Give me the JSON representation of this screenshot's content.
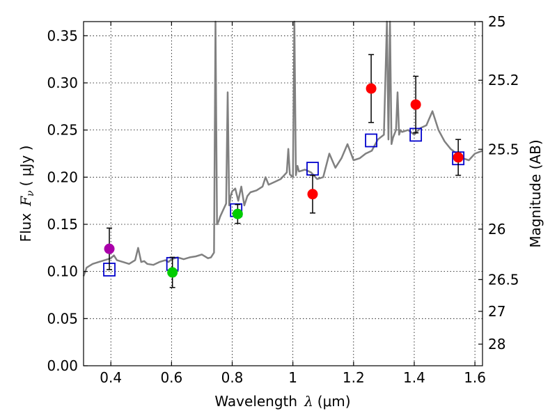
{
  "chart_data": {
    "type": "scatter",
    "title": "",
    "xlabel_text": "Wavelength",
    "xlabel_math": "λ",
    "xlabel_unit": "(μm)",
    "ylabel_text": "Flux",
    "ylabel_math": "F",
    "ylabel_sub": "ν",
    "ylabel_unit": "( μJy )",
    "y2label": "Magnitude (AB)",
    "xlim": [
      0.31,
      1.625
    ],
    "ylim": [
      0.0,
      0.365
    ],
    "grid": true,
    "x_ticks": [
      {
        "value": 0.4,
        "label": "0.4"
      },
      {
        "value": 0.6,
        "label": "0.6"
      },
      {
        "value": 0.8,
        "label": "0.8"
      },
      {
        "value": 1.0,
        "label": "1"
      },
      {
        "value": 1.2,
        "label": "1.2"
      },
      {
        "value": 1.4,
        "label": "1.4"
      },
      {
        "value": 1.6,
        "label": "1.6"
      }
    ],
    "y_ticks": [
      {
        "value": 0.0,
        "label": "0.00"
      },
      {
        "value": 0.05,
        "label": "0.05"
      },
      {
        "value": 0.1,
        "label": "0.10"
      },
      {
        "value": 0.15,
        "label": "0.15"
      },
      {
        "value": 0.2,
        "label": "0.20"
      },
      {
        "value": 0.25,
        "label": "0.25"
      },
      {
        "value": 0.3,
        "label": "0.30"
      },
      {
        "value": 0.35,
        "label": "0.35"
      }
    ],
    "y2_ticks": [
      {
        "label": "25",
        "flux": 0.365
      },
      {
        "label": "25.2",
        "flux": 0.3028
      },
      {
        "label": "25.5",
        "flux": 0.2296
      },
      {
        "label": "26",
        "flux": 0.1449
      },
      {
        "label": "26.5",
        "flux": 0.0914
      },
      {
        "label": "27",
        "flux": 0.0577
      },
      {
        "label": "28",
        "flux": 0.0229
      }
    ],
    "series": [
      {
        "marker": "line",
        "color": "#808080",
        "x": [
          0.31,
          0.32,
          0.33,
          0.34,
          0.36,
          0.38,
          0.4,
          0.41,
          0.42,
          0.44,
          0.46,
          0.48,
          0.49,
          0.5,
          0.51,
          0.52,
          0.54,
          0.56,
          0.58,
          0.59,
          0.6,
          0.62,
          0.64,
          0.66,
          0.68,
          0.7,
          0.72,
          0.73,
          0.74,
          0.745,
          0.75,
          0.755,
          0.76,
          0.77,
          0.78,
          0.785,
          0.79,
          0.795,
          0.8,
          0.81,
          0.82,
          0.83,
          0.84,
          0.85,
          0.86,
          0.88,
          0.9,
          0.91,
          0.92,
          0.94,
          0.96,
          0.98,
          0.985,
          0.99,
          1.0,
          1.005,
          1.01,
          1.015,
          1.02,
          1.04,
          1.06,
          1.08,
          1.1,
          1.12,
          1.14,
          1.16,
          1.18,
          1.2,
          1.22,
          1.24,
          1.26,
          1.28,
          1.3,
          1.31,
          1.315,
          1.32,
          1.325,
          1.33,
          1.34,
          1.345,
          1.35,
          1.355,
          1.36,
          1.38,
          1.4,
          1.42,
          1.44,
          1.46,
          1.48,
          1.5,
          1.52,
          1.54,
          1.56,
          1.58,
          1.6,
          1.625
        ],
        "y": [
          0.095,
          0.104,
          0.106,
          0.108,
          0.11,
          0.112,
          0.114,
          0.117,
          0.112,
          0.11,
          0.108,
          0.112,
          0.125,
          0.11,
          0.111,
          0.108,
          0.107,
          0.11,
          0.112,
          0.11,
          0.113,
          0.115,
          0.113,
          0.115,
          0.116,
          0.118,
          0.114,
          0.115,
          0.12,
          0.365,
          0.15,
          0.153,
          0.158,
          0.165,
          0.172,
          0.29,
          0.17,
          0.18,
          0.185,
          0.188,
          0.175,
          0.19,
          0.17,
          0.18,
          0.184,
          0.186,
          0.19,
          0.2,
          0.192,
          0.195,
          0.198,
          0.205,
          0.23,
          0.203,
          0.2,
          0.365,
          0.202,
          0.212,
          0.206,
          0.208,
          0.205,
          0.198,
          0.2,
          0.225,
          0.21,
          0.22,
          0.235,
          0.218,
          0.22,
          0.225,
          0.228,
          0.24,
          0.245,
          0.365,
          0.24,
          0.365,
          0.235,
          0.242,
          0.25,
          0.29,
          0.245,
          0.25,
          0.248,
          0.25,
          0.245,
          0.252,
          0.255,
          0.27,
          0.25,
          0.238,
          0.23,
          0.225,
          0.22,
          0.218,
          0.225,
          0.228
        ]
      },
      {
        "marker": "open-square",
        "color": "#0000cc",
        "x": [
          0.395,
          0.603,
          0.813,
          1.065,
          1.258,
          1.405,
          1.545
        ],
        "y": [
          0.102,
          0.108,
          0.165,
          0.209,
          0.239,
          0.245,
          0.22
        ]
      },
      {
        "marker": "filled-circle",
        "color": "#aa00aa",
        "x": [
          0.395
        ],
        "y": [
          0.124
        ],
        "yerr": [
          0.022
        ]
      },
      {
        "marker": "filled-circle",
        "color": "#00cc00",
        "x": [
          0.603,
          0.818
        ],
        "y": [
          0.099,
          0.161
        ],
        "yerr": [
          0.016,
          0.01
        ]
      },
      {
        "marker": "filled-circle",
        "color": "#ff0000",
        "x": [
          1.065,
          1.258,
          1.405,
          1.545
        ],
        "y": [
          0.182,
          0.294,
          0.277,
          0.221
        ],
        "yerr": [
          0.02,
          0.036,
          0.03,
          0.019
        ]
      }
    ]
  }
}
